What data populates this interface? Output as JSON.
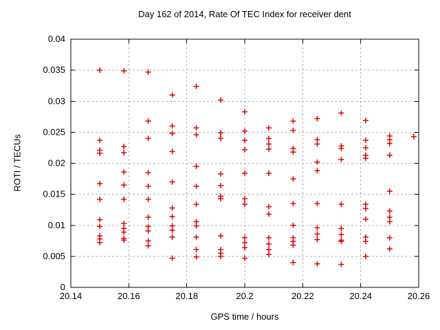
{
  "chart_data": {
    "type": "scatter",
    "title": "Day 162 of 2014, Rate Of TEC Index for receiver dent",
    "xlabel": "GPS time / hours",
    "ylabel": "ROTI / TECUs",
    "xlim": [
      20.14,
      20.26
    ],
    "ylim": [
      0,
      0.04
    ],
    "xticks": [
      20.14,
      20.16,
      20.18,
      20.2,
      20.22,
      20.24,
      20.26
    ],
    "xtick_labels": [
      "20.14",
      "20.16",
      "20.18",
      "20.2",
      "20.22",
      "20.24",
      "20.26"
    ],
    "yticks": [
      0,
      0.005,
      0.01,
      0.015,
      0.02,
      0.025,
      0.03,
      0.035,
      0.04
    ],
    "ytick_labels": [
      "0",
      "0.005",
      "0.01",
      "0.015",
      "0.02",
      "0.025",
      "0.03",
      "0.035",
      "0.04"
    ],
    "grid": true,
    "legend": "none",
    "marker": "plus",
    "marker_color": "#e00000",
    "grid_color": "#b0b0b0",
    "border_color": "#000000",
    "series": [
      {
        "name": "ROTI",
        "points": [
          [
            20.15,
            0.035
          ],
          [
            20.15,
            0.0237
          ],
          [
            20.15,
            0.0221
          ],
          [
            20.15,
            0.0216
          ],
          [
            20.15,
            0.0167
          ],
          [
            20.15,
            0.0142
          ],
          [
            20.15,
            0.0109
          ],
          [
            20.15,
            0.0098
          ],
          [
            20.15,
            0.0083
          ],
          [
            20.15,
            0.0078
          ],
          [
            20.15,
            0.0072
          ],
          [
            20.1583,
            0.0349
          ],
          [
            20.1583,
            0.0227
          ],
          [
            20.1583,
            0.0217
          ],
          [
            20.1583,
            0.0186
          ],
          [
            20.1583,
            0.0165
          ],
          [
            20.1583,
            0.0142
          ],
          [
            20.1583,
            0.0103
          ],
          [
            20.1583,
            0.0095
          ],
          [
            20.1583,
            0.0089
          ],
          [
            20.1583,
            0.0079
          ],
          [
            20.1583,
            0.0076
          ],
          [
            20.1667,
            0.0347
          ],
          [
            20.1667,
            0.0268
          ],
          [
            20.1667,
            0.024
          ],
          [
            20.1667,
            0.0185
          ],
          [
            20.1667,
            0.0163
          ],
          [
            20.1667,
            0.0142
          ],
          [
            20.1667,
            0.0113
          ],
          [
            20.1667,
            0.0098
          ],
          [
            20.1667,
            0.0091
          ],
          [
            20.1667,
            0.0075
          ],
          [
            20.1667,
            0.0067
          ],
          [
            20.175,
            0.031
          ],
          [
            20.175,
            0.026
          ],
          [
            20.175,
            0.0248
          ],
          [
            20.175,
            0.0219
          ],
          [
            20.175,
            0.017
          ],
          [
            20.175,
            0.0128
          ],
          [
            20.175,
            0.0114
          ],
          [
            20.175,
            0.0099
          ],
          [
            20.175,
            0.0092
          ],
          [
            20.175,
            0.0081
          ],
          [
            20.175,
            0.0047
          ],
          [
            20.1833,
            0.0324
          ],
          [
            20.1833,
            0.0257
          ],
          [
            20.1833,
            0.0246
          ],
          [
            20.1833,
            0.0195
          ],
          [
            20.1833,
            0.0163
          ],
          [
            20.1833,
            0.0134
          ],
          [
            20.1833,
            0.0106
          ],
          [
            20.1833,
            0.0099
          ],
          [
            20.1833,
            0.0081
          ],
          [
            20.1833,
            0.0061
          ],
          [
            20.1833,
            0.0049
          ],
          [
            20.1917,
            0.0302
          ],
          [
            20.1917,
            0.0249
          ],
          [
            20.1917,
            0.024
          ],
          [
            20.1917,
            0.0183
          ],
          [
            20.1917,
            0.0164
          ],
          [
            20.1917,
            0.0147
          ],
          [
            20.1917,
            0.0143
          ],
          [
            20.1917,
            0.0083
          ],
          [
            20.1917,
            0.0061
          ],
          [
            20.1917,
            0.0055
          ],
          [
            20.1917,
            0.005
          ],
          [
            20.2,
            0.0283
          ],
          [
            20.2,
            0.0252
          ],
          [
            20.2,
            0.0237
          ],
          [
            20.2,
            0.0222
          ],
          [
            20.2,
            0.0184
          ],
          [
            20.2,
            0.0143
          ],
          [
            20.2,
            0.0134
          ],
          [
            20.2,
            0.008
          ],
          [
            20.2,
            0.0072
          ],
          [
            20.2,
            0.0064
          ],
          [
            20.2,
            0.0047
          ],
          [
            20.2083,
            0.0257
          ],
          [
            20.2083,
            0.024
          ],
          [
            20.2083,
            0.0231
          ],
          [
            20.2083,
            0.0223
          ],
          [
            20.2083,
            0.0184
          ],
          [
            20.2083,
            0.013
          ],
          [
            20.2083,
            0.0118
          ],
          [
            20.2083,
            0.008
          ],
          [
            20.2083,
            0.007
          ],
          [
            20.2083,
            0.0061
          ],
          [
            20.2083,
            0.0053
          ],
          [
            20.2167,
            0.0268
          ],
          [
            20.2167,
            0.0253
          ],
          [
            20.2167,
            0.0224
          ],
          [
            20.2167,
            0.0218
          ],
          [
            20.2167,
            0.0175
          ],
          [
            20.2167,
            0.0135
          ],
          [
            20.2167,
            0.01
          ],
          [
            20.2167,
            0.008
          ],
          [
            20.2167,
            0.0074
          ],
          [
            20.2167,
            0.0068
          ],
          [
            20.2167,
            0.004
          ],
          [
            20.225,
            0.0272
          ],
          [
            20.225,
            0.0238
          ],
          [
            20.225,
            0.0231
          ],
          [
            20.225,
            0.0202
          ],
          [
            20.225,
            0.0188
          ],
          [
            20.225,
            0.0135
          ],
          [
            20.225,
            0.0096
          ],
          [
            20.225,
            0.0086
          ],
          [
            20.225,
            0.0077
          ],
          [
            20.225,
            0.0038
          ],
          [
            20.2333,
            0.0281
          ],
          [
            20.2333,
            0.0228
          ],
          [
            20.2333,
            0.0224
          ],
          [
            20.2333,
            0.0206
          ],
          [
            20.2333,
            0.0134
          ],
          [
            20.2333,
            0.0095
          ],
          [
            20.2333,
            0.0085
          ],
          [
            20.2333,
            0.0076
          ],
          [
            20.2333,
            0.0074
          ],
          [
            20.2333,
            0.0037
          ],
          [
            20.2417,
            0.0269
          ],
          [
            20.2417,
            0.0237
          ],
          [
            20.2417,
            0.0225
          ],
          [
            20.2417,
            0.0213
          ],
          [
            20.2417,
            0.0208
          ],
          [
            20.2417,
            0.0134
          ],
          [
            20.2417,
            0.0127
          ],
          [
            20.2417,
            0.011
          ],
          [
            20.2417,
            0.0081
          ],
          [
            20.2417,
            0.0074
          ],
          [
            20.2417,
            0.005
          ],
          [
            20.25,
            0.0244
          ],
          [
            20.25,
            0.0238
          ],
          [
            20.25,
            0.0232
          ],
          [
            20.25,
            0.0213
          ],
          [
            20.25,
            0.0155
          ],
          [
            20.25,
            0.0123
          ],
          [
            20.25,
            0.0113
          ],
          [
            20.25,
            0.0106
          ],
          [
            20.25,
            0.008
          ],
          [
            20.25,
            0.0062
          ],
          [
            20.2583,
            0.0243
          ]
        ]
      }
    ]
  }
}
